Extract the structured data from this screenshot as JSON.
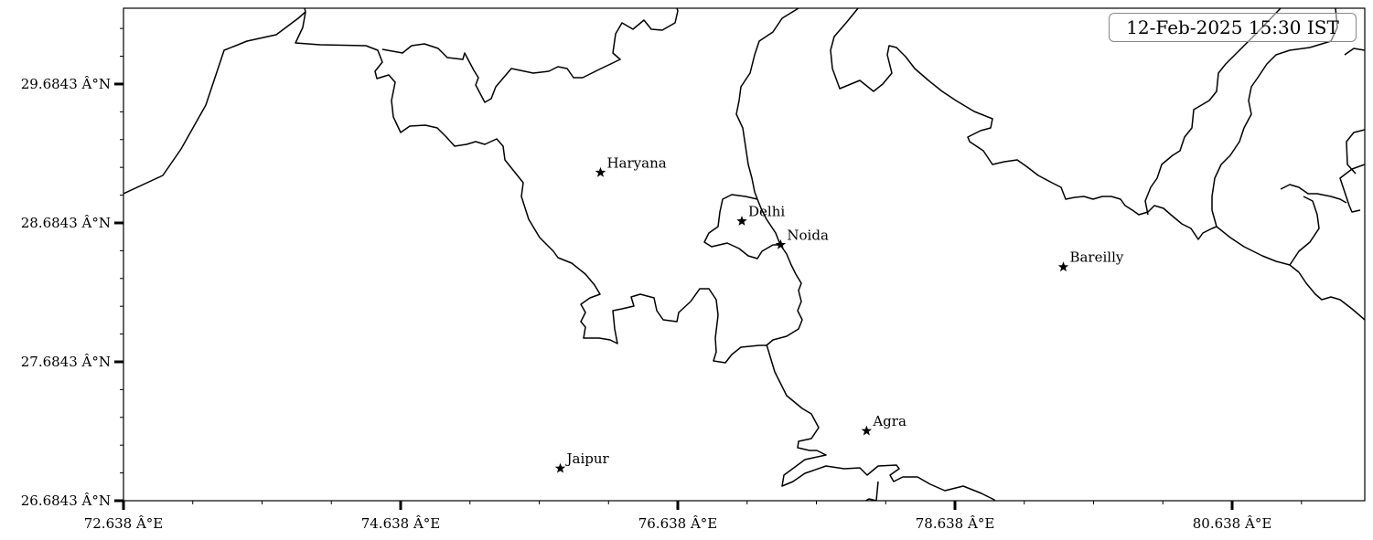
{
  "map": {
    "timestamp": "12-Feb-2025 15:30 IST",
    "extent": {
      "lon": [
        72.638,
        81.595
      ],
      "lat": [
        26.6843,
        30.23
      ]
    },
    "x_ticks": [
      {
        "value": 72.638,
        "label": "72.638 Â°E"
      },
      {
        "value": 74.638,
        "label": "74.638 Â°E"
      },
      {
        "value": 76.638,
        "label": "76.638 Â°E"
      },
      {
        "value": 78.638,
        "label": "78.638 Â°E"
      },
      {
        "value": 80.638,
        "label": "80.638 Â°E"
      }
    ],
    "y_ticks": [
      {
        "value": 26.6843,
        "label": "26.6843 Â°N"
      },
      {
        "value": 27.6843,
        "label": "27.6843 Â°N"
      },
      {
        "value": 28.6843,
        "label": "28.6843 Â°N"
      },
      {
        "value": 29.6843,
        "label": "29.6843 Â°N"
      }
    ],
    "marker_icon": "star-icon",
    "boundary_color": "#000000",
    "cities": [
      {
        "name": "Haryana",
        "lon": 76.08,
        "lat": 29.05
      },
      {
        "name": "Delhi",
        "lon": 77.1,
        "lat": 28.7
      },
      {
        "name": "Noida",
        "lon": 77.38,
        "lat": 28.53
      },
      {
        "name": "Bareilly",
        "lon": 79.42,
        "lat": 28.37
      },
      {
        "name": "Agra",
        "lon": 78.0,
        "lat": 27.19
      },
      {
        "name": "Jaipur",
        "lon": 75.79,
        "lat": 26.92
      }
    ]
  }
}
